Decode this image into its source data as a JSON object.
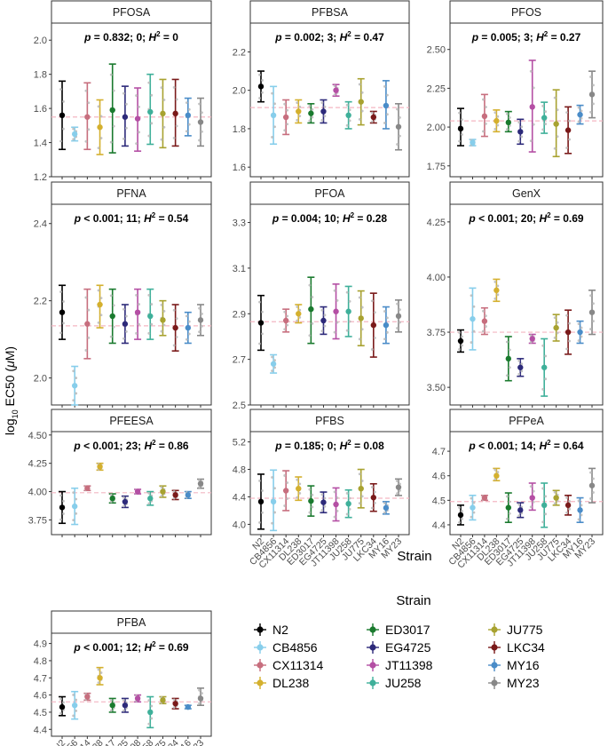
{
  "figure": {
    "y_axis_label_prefix": "log",
    "y_axis_label_sub": "10",
    "y_axis_label_main": " EC50 (",
    "y_axis_label_mu": "μ",
    "y_axis_label_suffix": "M)",
    "x_axis_label": "Strain",
    "legend_title": "Strain"
  },
  "strains": [
    "N2",
    "CB4856",
    "CX11314",
    "DL238",
    "ED3017",
    "EG4725",
    "JT11398",
    "JU258",
    "JU775",
    "LKC34",
    "MY16",
    "MY23"
  ],
  "colors": {
    "N2": "#000000",
    "CB4856": "#87CEEB",
    "CX11314": "#C76E7E",
    "DL238": "#D4B02E",
    "ED3017": "#1A7A2E",
    "EG4725": "#2D2A7A",
    "JT11398": "#B44FA4",
    "JU258": "#3FB09A",
    "JU775": "#A8A230",
    "LKC34": "#7A1A1A",
    "MY16": "#4A8CC8",
    "MY23": "#888888",
    "reference_line": "#F4B6C2"
  },
  "chart_data": [
    {
      "type": "pointrange",
      "title": "PFOSA",
      "ylim": [
        1.2,
        2.1
      ],
      "ticks": [
        "1.2",
        "1.4",
        "1.6",
        "1.8",
        "2.0"
      ],
      "reference": 1.55,
      "stat_p": "p",
      "stat_mid": " = 0.832; 0; ",
      "stat_h": "H",
      "stat_sup": "2",
      "stat_end": " = 0",
      "values": [
        1.56,
        1.45,
        1.55,
        1.49,
        1.59,
        1.55,
        1.54,
        1.58,
        1.57,
        1.57,
        1.56,
        1.52
      ],
      "lower": [
        1.36,
        1.41,
        1.36,
        1.33,
        1.34,
        1.38,
        1.35,
        1.39,
        1.37,
        1.38,
        1.44,
        1.38
      ],
      "upper": [
        1.76,
        1.49,
        1.75,
        1.65,
        1.86,
        1.73,
        1.72,
        1.8,
        1.77,
        1.77,
        1.66,
        1.66
      ]
    },
    {
      "type": "pointrange",
      "title": "PFBSA",
      "ylim": [
        1.55,
        2.35
      ],
      "ticks": [
        "1.6",
        "1.8",
        "2.0",
        "2.2"
      ],
      "reference": 1.91,
      "stat_p": "p",
      "stat_mid": " = 0.002; 3; ",
      "stat_h": "H",
      "stat_sup": "2",
      "stat_end": " = 0.47",
      "values": [
        2.02,
        1.87,
        1.86,
        1.89,
        1.88,
        1.89,
        2.0,
        1.87,
        1.94,
        1.86,
        1.92,
        1.81
      ],
      "lower": [
        1.94,
        1.72,
        1.77,
        1.83,
        1.83,
        1.83,
        1.97,
        1.8,
        1.82,
        1.83,
        1.8,
        1.69
      ],
      "upper": [
        2.1,
        2.02,
        1.95,
        1.95,
        1.93,
        1.95,
        2.03,
        1.94,
        2.06,
        1.89,
        2.05,
        1.93
      ]
    },
    {
      "type": "pointrange",
      "title": "PFOS",
      "ylim": [
        1.68,
        2.67
      ],
      "ticks": [
        "1.75",
        "2.00",
        "2.25",
        "2.50"
      ],
      "reference": 2.04,
      "stat_p": "p",
      "stat_mid": " = 0.005; 3; ",
      "stat_h": "H",
      "stat_sup": "2",
      "stat_end": " = 0.27",
      "values": [
        1.99,
        1.9,
        2.07,
        2.04,
        2.03,
        1.97,
        2.13,
        2.06,
        2.02,
        1.98,
        2.08,
        2.21
      ],
      "lower": [
        1.88,
        1.88,
        1.94,
        1.97,
        1.97,
        1.89,
        1.84,
        1.96,
        1.81,
        1.83,
        2.02,
        2.06
      ],
      "upper": [
        2.12,
        1.92,
        2.21,
        2.11,
        2.1,
        2.05,
        2.43,
        2.16,
        2.24,
        2.13,
        2.14,
        2.36
      ]
    },
    {
      "type": "pointrange",
      "title": "PFNA",
      "ylim": [
        1.93,
        2.45
      ],
      "ticks": [
        "2.0",
        "2.2",
        "2.4"
      ],
      "reference": 2.135,
      "stat_p": "p",
      "stat_mid": " < 0.001; 11; ",
      "stat_h": "H",
      "stat_sup": "2",
      "stat_end": " = 0.54",
      "values": [
        2.17,
        1.98,
        2.14,
        2.19,
        2.16,
        2.14,
        2.17,
        2.16,
        2.15,
        2.13,
        2.13,
        2.15
      ],
      "lower": [
        2.1,
        1.93,
        2.05,
        2.13,
        2.09,
        2.09,
        2.1,
        2.1,
        2.11,
        2.07,
        2.09,
        2.11
      ],
      "upper": [
        2.24,
        2.03,
        2.23,
        2.24,
        2.23,
        2.19,
        2.23,
        2.23,
        2.2,
        2.19,
        2.17,
        2.19
      ]
    },
    {
      "type": "pointrange",
      "title": "PFOA",
      "ylim": [
        2.5,
        3.38
      ],
      "ticks": [
        "2.5",
        "2.7",
        "2.9",
        "3.1",
        "3.3"
      ],
      "reference": 2.865,
      "stat_p": "p",
      "stat_mid": " = 0.004; 10; ",
      "stat_h": "H",
      "stat_sup": "2",
      "stat_end": " = 0.28",
      "values": [
        2.86,
        2.68,
        2.87,
        2.9,
        2.92,
        2.87,
        2.91,
        2.91,
        2.88,
        2.85,
        2.85,
        2.89
      ],
      "lower": [
        2.74,
        2.64,
        2.82,
        2.86,
        2.77,
        2.81,
        2.79,
        2.8,
        2.76,
        2.71,
        2.77,
        2.82
      ],
      "upper": [
        2.98,
        2.72,
        2.92,
        2.94,
        3.06,
        2.93,
        3.03,
        3.02,
        3.0,
        2.99,
        2.93,
        2.96
      ]
    },
    {
      "type": "pointrange",
      "title": "GenX",
      "ylim": [
        3.42,
        4.33
      ],
      "ticks": [
        "3.50",
        "3.75",
        "4.00",
        "4.25"
      ],
      "reference": 3.75,
      "stat_p": "p",
      "stat_mid": " < 0.001; 20; ",
      "stat_h": "H",
      "stat_sup": "2",
      "stat_end": " = 0.69",
      "values": [
        3.71,
        3.81,
        3.8,
        3.94,
        3.63,
        3.59,
        3.72,
        3.59,
        3.77,
        3.75,
        3.75,
        3.84
      ],
      "lower": [
        3.66,
        3.67,
        3.74,
        3.89,
        3.53,
        3.55,
        3.7,
        3.46,
        3.71,
        3.65,
        3.7,
        3.74
      ],
      "upper": [
        3.76,
        3.95,
        3.86,
        3.99,
        3.73,
        3.63,
        3.74,
        3.72,
        3.83,
        3.85,
        3.8,
        3.94
      ]
    },
    {
      "type": "pointrange",
      "title": "PFEESA",
      "ylim": [
        3.62,
        4.53
      ],
      "ticks": [
        "3.75",
        "4.00",
        "4.25",
        "4.50"
      ],
      "reference": 3.99,
      "stat_p": "p",
      "stat_mid": " < 0.001; 23; ",
      "stat_h": "H",
      "stat_sup": "2",
      "stat_end": " = 0.86",
      "values": [
        3.86,
        3.87,
        4.03,
        4.22,
        3.94,
        3.91,
        4.0,
        3.94,
        4.0,
        3.97,
        3.97,
        4.07
      ],
      "lower": [
        3.72,
        3.71,
        4.01,
        4.19,
        3.9,
        3.86,
        3.98,
        3.88,
        3.95,
        3.93,
        3.94,
        4.03
      ],
      "upper": [
        4.0,
        4.03,
        4.05,
        4.25,
        3.98,
        3.96,
        4.02,
        4.0,
        4.05,
        4.01,
        4.0,
        4.11
      ]
    },
    {
      "type": "pointrange",
      "title": "PFBS",
      "ylim": [
        3.85,
        5.35
      ],
      "ticks": [
        "4.0",
        "4.4",
        "4.8",
        "5.2"
      ],
      "reference": 4.38,
      "stat_p": "p",
      "stat_mid": " = 0.185; 0; ",
      "stat_h": "H",
      "stat_sup": "2",
      "stat_end": " = 0.08",
      "values": [
        4.33,
        4.33,
        4.49,
        4.52,
        4.34,
        4.32,
        4.29,
        4.3,
        4.52,
        4.39,
        4.24,
        4.54
      ],
      "lower": [
        3.93,
        3.91,
        4.2,
        4.35,
        4.12,
        4.17,
        4.05,
        4.1,
        4.24,
        4.19,
        4.15,
        4.42
      ],
      "upper": [
        4.73,
        4.79,
        4.78,
        4.69,
        4.56,
        4.47,
        4.53,
        4.5,
        4.8,
        4.59,
        4.33,
        4.66
      ]
    },
    {
      "type": "pointrange",
      "title": "PFPeA",
      "ylim": [
        4.36,
        4.78
      ],
      "ticks": [
        "4.4",
        "4.5",
        "4.6",
        "4.7"
      ],
      "reference": 4.495,
      "stat_p": "p",
      "stat_mid": " < 0.001; 14; ",
      "stat_h": "H",
      "stat_sup": "2",
      "stat_end": " = 0.64",
      "values": [
        4.44,
        4.47,
        4.51,
        4.6,
        4.47,
        4.46,
        4.51,
        4.48,
        4.51,
        4.48,
        4.46,
        4.56
      ],
      "lower": [
        4.4,
        4.42,
        4.5,
        4.58,
        4.41,
        4.43,
        4.46,
        4.39,
        4.48,
        4.44,
        4.41,
        4.49
      ],
      "upper": [
        4.48,
        4.52,
        4.52,
        4.63,
        4.53,
        4.49,
        4.57,
        4.57,
        4.54,
        4.52,
        4.51,
        4.63
      ]
    },
    {
      "type": "pointrange",
      "title": "PFBA",
      "ylim": [
        4.36,
        4.96
      ],
      "ticks": [
        "4.4",
        "4.5",
        "4.6",
        "4.7",
        "4.8",
        "4.9"
      ],
      "reference": 4.56,
      "stat_p": "p",
      "stat_mid": " < 0.001; 12; ",
      "stat_h": "H",
      "stat_sup": "2",
      "stat_end": " = 0.69",
      "values": [
        4.53,
        4.54,
        4.59,
        4.7,
        4.54,
        4.54,
        4.58,
        4.5,
        4.57,
        4.55,
        4.53,
        4.58
      ],
      "lower": [
        4.48,
        4.46,
        4.57,
        4.66,
        4.5,
        4.5,
        4.56,
        4.41,
        4.55,
        4.52,
        4.52,
        4.54
      ],
      "upper": [
        4.59,
        4.62,
        4.61,
        4.76,
        4.58,
        4.58,
        4.6,
        4.59,
        4.59,
        4.58,
        4.54,
        4.64
      ]
    }
  ]
}
